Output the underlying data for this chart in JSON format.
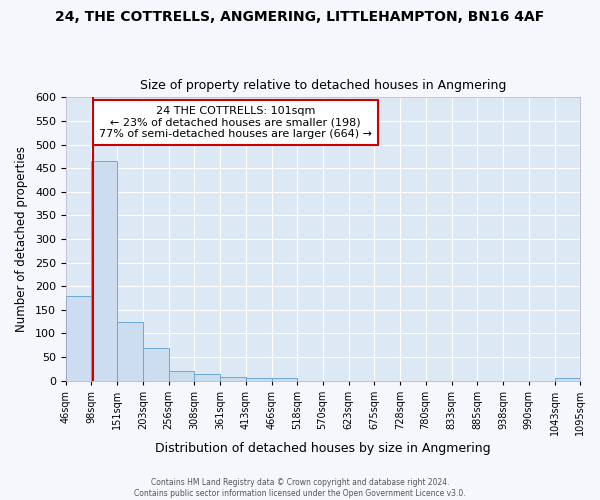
{
  "title1": "24, THE COTTRELLS, ANGMERING, LITTLEHAMPTON, BN16 4AF",
  "title2": "Size of property relative to detached houses in Angmering",
  "xlabel": "Distribution of detached houses by size in Angmering",
  "ylabel": "Number of detached properties",
  "bin_edges": [
    46,
    98,
    151,
    203,
    256,
    308,
    361,
    413,
    466,
    518,
    570,
    623,
    675,
    728,
    780,
    833,
    885,
    938,
    990,
    1043,
    1095
  ],
  "bar_heights": [
    180,
    465,
    125,
    70,
    20,
    14,
    7,
    5,
    5,
    0,
    0,
    0,
    0,
    0,
    0,
    0,
    0,
    0,
    0,
    5
  ],
  "bar_color": "#ccddf0",
  "bar_edge_color": "#6aaad4",
  "vline_x": 101,
  "vline_color": "#cc0000",
  "annotation_title": "24 THE COTTRELLS: 101sqm",
  "annotation_line2": "← 23% of detached houses are smaller (198)",
  "annotation_line3": "77% of semi-detached houses are larger (664) →",
  "annotation_box_edge": "#cc0000",
  "ylim": [
    0,
    600
  ],
  "yticks": [
    0,
    50,
    100,
    150,
    200,
    250,
    300,
    350,
    400,
    450,
    500,
    550,
    600
  ],
  "plot_bg": "#dde8f5",
  "fig_bg": "#f5f7fc",
  "grid_color": "#ffffff",
  "footer_line1": "Contains HM Land Registry data © Crown copyright and database right 2024.",
  "footer_line2": "Contains public sector information licensed under the Open Government Licence v3.0."
}
